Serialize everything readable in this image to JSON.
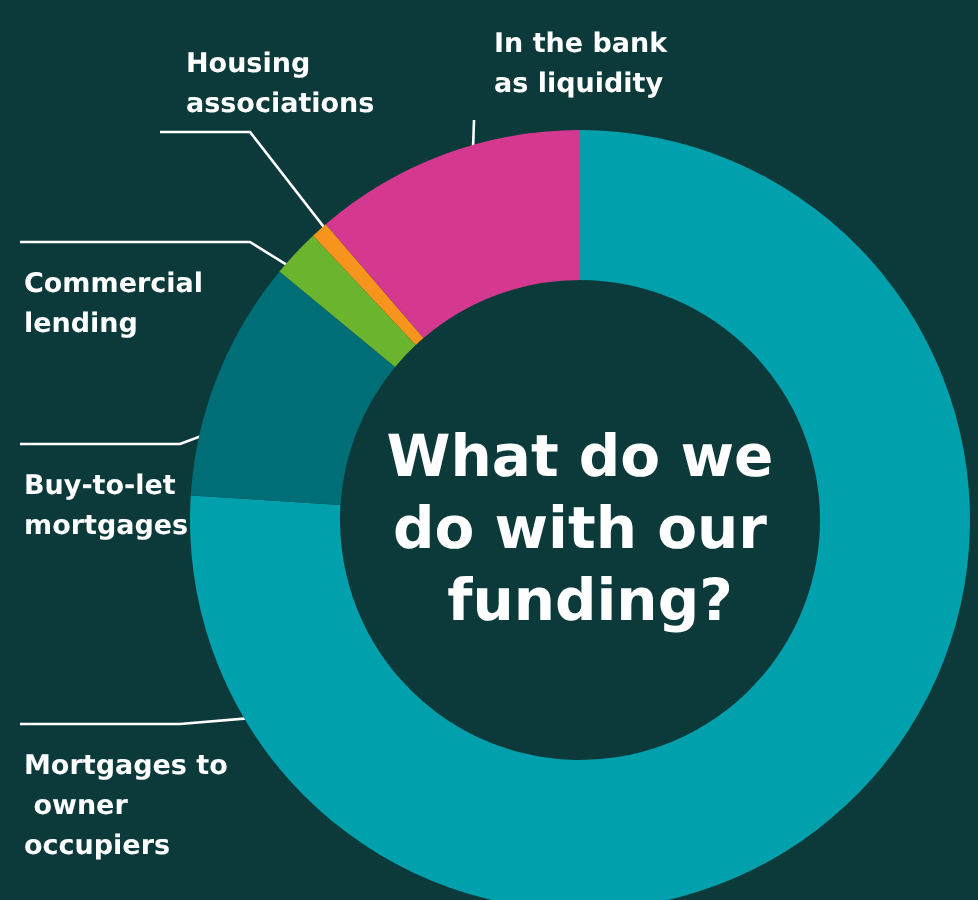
{
  "chart_data": {
    "type": "donut",
    "title": "What do we do with our funding?",
    "categories": [
      "Mortgages to owner occupiers",
      "Buy-to-let mortgages",
      "Commercial lending",
      "Housing associations",
      "In the bank as liquidity"
    ],
    "values": [
      76,
      10,
      2,
      0.7,
      11.3
    ],
    "colors": [
      "#00a0ad",
      "#006e76",
      "#6bb42e",
      "#f7941d",
      "#d4398f"
    ],
    "legend": false
  }
}
